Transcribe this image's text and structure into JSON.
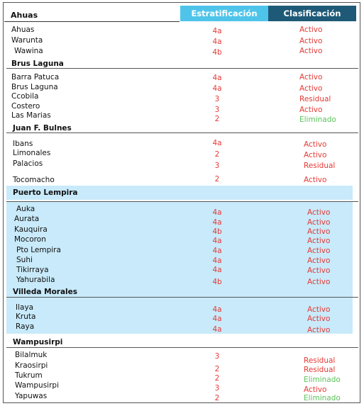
{
  "header": {
    "municipio": "Ahuas",
    "estratificacion": "Estratificación",
    "clasificacion": "Clasificación"
  },
  "groups": [
    {
      "title": "Brus Laguna"
    },
    {
      "title": "Juan F. Bulnes"
    },
    {
      "title": "Puerto Lempira"
    },
    {
      "title": "Villeda Morales"
    },
    {
      "title": "Wampusirpi"
    }
  ],
  "rows": [
    {
      "name": "Ahuas",
      "strat": "4a",
      "clas": "Activo",
      "status": "act"
    },
    {
      "name": "Warunta",
      "strat": "4a",
      "clas": "Activo",
      "status": "act"
    },
    {
      "name": "Wawina",
      "strat": "4b",
      "clas": "Activo",
      "status": "act"
    },
    {
      "name": "Barra Patuca",
      "strat": "4a",
      "clas": "Activo",
      "status": "act"
    },
    {
      "name": "Brus Laguna",
      "strat": "4a",
      "clas": "Activo",
      "status": "act"
    },
    {
      "name": "Ccobila",
      "strat": "3",
      "clas": "Residual",
      "status": "res"
    },
    {
      "name": "Costero",
      "strat": "3",
      "clas": "Activo",
      "status": "act"
    },
    {
      "name": "Las Marias",
      "strat": "2",
      "clas": "Eliminado",
      "status": "elim"
    },
    {
      "name": "Ibans",
      "strat": "4a",
      "clas": "Activo",
      "status": "act"
    },
    {
      "name": "Limonales",
      "strat": "2",
      "clas": "Activo",
      "status": "act"
    },
    {
      "name": "Palacios",
      "strat": "3",
      "clas": "Residual",
      "status": "res"
    },
    {
      "name": "Tocomacho",
      "strat": "2",
      "clas": "Activo",
      "status": "act"
    },
    {
      "name": "Auka",
      "strat": "4a",
      "clas": "Activo",
      "status": "act"
    },
    {
      "name": "Aurata",
      "strat": "4a",
      "clas": "Activo",
      "status": "act"
    },
    {
      "name": "Kauquira",
      "strat": "4b",
      "clas": "Activo",
      "status": "act"
    },
    {
      "name": "Mocoron",
      "strat": "4a",
      "clas": "Activo",
      "status": "act"
    },
    {
      "name": "Pto Lempira",
      "strat": "4a",
      "clas": "Activo",
      "status": "act"
    },
    {
      "name": "Suhi",
      "strat": "4a",
      "clas": "Activo",
      "status": "act"
    },
    {
      "name": "Tikirraya",
      "strat": "4a",
      "clas": "Activo",
      "status": "act"
    },
    {
      "name": "Yahurabila",
      "strat": "4b",
      "clas": "Activo",
      "status": "act"
    },
    {
      "name": "Ilaya",
      "strat": "4a",
      "clas": "Activo",
      "status": "act"
    },
    {
      "name": "Kruta",
      "strat": "4a",
      "clas": "Activo",
      "status": "act"
    },
    {
      "name": "Raya",
      "strat": "4a",
      "clas": "Activo",
      "status": "act"
    },
    {
      "name": "Bilalmuk",
      "strat": "3",
      "clas": "Residual",
      "status": "res"
    },
    {
      "name": "Kraosirpi",
      "strat": "2",
      "clas": "Residual",
      "status": "res"
    },
    {
      "name": "Tukrum",
      "strat": "2",
      "clas": "Eliminado",
      "status": "elim"
    },
    {
      "name": "Wampusirpi",
      "strat": "3",
      "clas": "Activo",
      "status": "act"
    },
    {
      "name": "Yapuwas",
      "strat": "2",
      "clas": "Eliminado",
      "status": "elim"
    }
  ],
  "colors": {
    "estratificacion_header": "#4fc4ea",
    "clasificacion_header": "#1e5a77",
    "highlight_band": "#c8eafa",
    "active": "#e53935",
    "eliminated": "#5cc25a"
  }
}
